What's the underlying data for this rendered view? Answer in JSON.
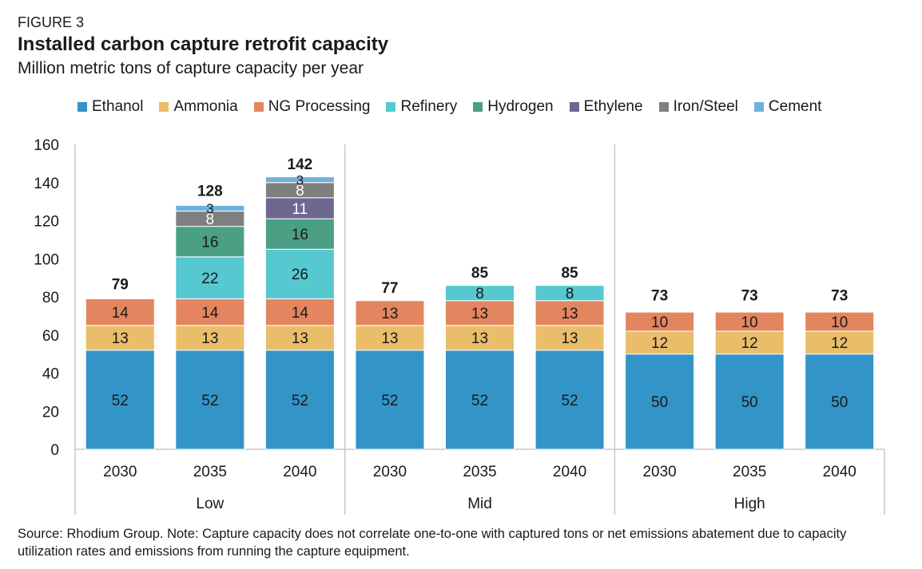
{
  "figure_label": "FIGURE 3",
  "title": "Installed carbon capture retrofit capacity",
  "subtitle": "Million metric tons of capture capacity per year",
  "source_note": "Source: Rhodium Group. Note: Capture capacity does not correlate one-to-one with captured tons or net emissions abatement due to capacity utilization rates and emissions from running the capture equipment.",
  "chart_data": {
    "type": "bar",
    "stacked": true,
    "ylim": [
      0,
      160
    ],
    "yticks": [
      0,
      20,
      40,
      60,
      80,
      100,
      120,
      140,
      160
    ],
    "legend_position": "top",
    "groups": [
      "Low",
      "Mid",
      "High"
    ],
    "categories": [
      "2030",
      "2035",
      "2040",
      "2030",
      "2035",
      "2040",
      "2030",
      "2035",
      "2040"
    ],
    "category_group": [
      0,
      0,
      0,
      1,
      1,
      1,
      2,
      2,
      2
    ],
    "totals": [
      79,
      128,
      142,
      77,
      85,
      85,
      73,
      73,
      73
    ],
    "series": [
      {
        "name": "Ethanol",
        "color": "#3394c8",
        "label_color": "#1a1a1a",
        "values": [
          52,
          52,
          52,
          52,
          52,
          52,
          50,
          50,
          50
        ]
      },
      {
        "name": "Ammonia",
        "color": "#e9bd6a",
        "label_color": "#1a1a1a",
        "values": [
          13,
          13,
          13,
          13,
          13,
          13,
          12,
          12,
          12
        ]
      },
      {
        "name": "NG Processing",
        "color": "#e3855f",
        "label_color": "#1a1a1a",
        "values": [
          14,
          14,
          14,
          13,
          13,
          13,
          10,
          10,
          10
        ]
      },
      {
        "name": "Refinery",
        "color": "#55c8d0",
        "label_color": "#1a1a1a",
        "values": [
          0,
          22,
          26,
          0,
          8,
          8,
          0,
          0,
          0
        ]
      },
      {
        "name": "Hydrogen",
        "color": "#4a9f84",
        "label_color": "#1a1a1a",
        "values": [
          0,
          16,
          16,
          0,
          0,
          0,
          0,
          0,
          0
        ]
      },
      {
        "name": "Ethylene",
        "color": "#6e6790",
        "label_color": "#ffffff",
        "values": [
          0,
          0,
          11,
          0,
          0,
          0,
          0,
          0,
          0
        ]
      },
      {
        "name": "Iron/Steel",
        "color": "#7f7f7f",
        "label_color": "#ffffff",
        "values": [
          0,
          8,
          8,
          0,
          0,
          0,
          0,
          0,
          0
        ]
      },
      {
        "name": "Cement",
        "color": "#6fb1dc",
        "label_color": "#1a1a1a",
        "values": [
          0,
          3,
          3,
          0,
          0,
          0,
          0,
          0,
          0
        ]
      }
    ]
  }
}
